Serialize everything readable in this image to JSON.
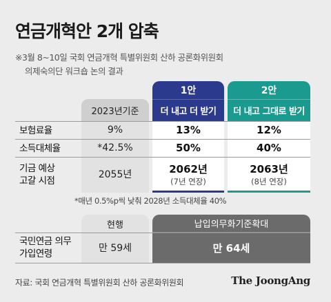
{
  "title": "연금개혁안 2개 압축",
  "note": {
    "line1": "※3월 8~10일 국회 연금개혁 특별위원회 산하 공론화위원회",
    "line2": "의제숙의단 워크숍 논의 결과"
  },
  "table": {
    "base_header": "2023년기준",
    "plan1": {
      "header": "1안",
      "subtitle": "더 내고 더 받기"
    },
    "plan2": {
      "header": "2안",
      "subtitle": "더 내고 그대로 받기"
    },
    "rows": [
      {
        "label": "보험료율",
        "base": "9%",
        "plan1": "13%",
        "plan2": "12%"
      },
      {
        "label": "소득대체율",
        "base": "*42.5%",
        "plan1": "50%",
        "plan2": "40%"
      },
      {
        "label_line1": "기금 예상",
        "label_line2": "고갈 시점",
        "base": "2055년",
        "plan1": "2062년",
        "plan1_sub": "(7년 연장)",
        "plan2": "2063년",
        "plan2_sub": "(8년 연장)"
      }
    ],
    "footnote": "*매년 0.5%p씩 낮춰 2028년 소득대체율 40%"
  },
  "age_table": {
    "current_header": "현행",
    "proposal_header": "납입의무화기준확대",
    "label_line1": "국민연금 의무",
    "label_line2": "가입연령",
    "current_value": "만 59세",
    "proposal_value": "만 64세"
  },
  "source": "자료: 국회 연금개혁 특별위원회 산하 공론화위원회",
  "logo": "The JoongAng",
  "colors": {
    "plan1": "#2b3a8c",
    "plan2": "#1b9a8f",
    "proposal": "#6b6b6b"
  }
}
